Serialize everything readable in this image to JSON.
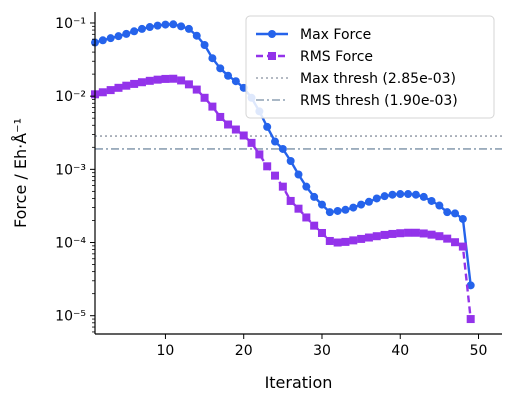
{
  "chart_data": {
    "type": "line",
    "xlabel": "Iteration",
    "ylabel": "Force / Eh·Å⁻¹",
    "xlim": [
      1,
      53
    ],
    "ylim_log10": [
      -5.25,
      -0.85
    ],
    "y_scale": "log",
    "grid": false,
    "legend_placement": "top-right",
    "x_ticks": [
      10,
      20,
      30,
      40,
      50
    ],
    "x_tick_labels": [
      "10",
      "20",
      "30",
      "40",
      "50"
    ],
    "y_ticks": [
      -5,
      -4,
      -3,
      -2,
      -1
    ],
    "y_tick_labels": [
      "10⁻⁵",
      "10⁻⁴",
      "10⁻³",
      "10⁻²",
      "10⁻¹"
    ],
    "x": [
      1,
      2,
      3,
      4,
      5,
      6,
      7,
      8,
      9,
      10,
      11,
      12,
      13,
      14,
      15,
      16,
      17,
      18,
      19,
      20,
      21,
      22,
      23,
      24,
      25,
      26,
      27,
      28,
      29,
      30,
      31,
      32,
      33,
      34,
      35,
      36,
      37,
      38,
      39,
      40,
      41,
      42,
      43,
      44,
      45,
      46,
      47,
      48,
      49
    ],
    "series": [
      {
        "name": "Max Force",
        "color": "#2563eb",
        "marker": "circle",
        "line": "solid",
        "values": [
          0.054,
          0.058,
          0.062,
          0.066,
          0.071,
          0.077,
          0.083,
          0.088,
          0.092,
          0.095,
          0.096,
          0.09,
          0.083,
          0.067,
          0.05,
          0.033,
          0.024,
          0.019,
          0.016,
          0.013,
          0.0095,
          0.0062,
          0.0038,
          0.0024,
          0.0019,
          0.0013,
          0.00085,
          0.00058,
          0.00042,
          0.00033,
          0.00026,
          0.00027,
          0.00028,
          0.0003,
          0.00033,
          0.00036,
          0.0004,
          0.00043,
          0.00045,
          0.00046,
          0.00046,
          0.00045,
          0.00042,
          0.00037,
          0.00032,
          0.00026,
          0.00025,
          0.00021,
          2.6e-05
        ]
      },
      {
        "name": "RMS Force",
        "color": "#9333ea",
        "marker": "square",
        "line": "dashed",
        "values": [
          0.0106,
          0.0113,
          0.0121,
          0.013,
          0.0139,
          0.0147,
          0.0155,
          0.0162,
          0.0168,
          0.0172,
          0.0173,
          0.0164,
          0.0145,
          0.0123,
          0.0095,
          0.0072,
          0.0052,
          0.0041,
          0.0035,
          0.0029,
          0.0023,
          0.0016,
          0.0011,
          0.00082,
          0.00058,
          0.00037,
          0.00029,
          0.00022,
          0.00017,
          0.000135,
          0.000105,
          0.0001,
          0.000102,
          0.000107,
          0.000112,
          0.000117,
          0.000122,
          0.000127,
          0.000131,
          0.000134,
          0.000136,
          0.000136,
          0.000133,
          0.000128,
          0.000122,
          0.000113,
          0.000101,
          8.8e-05,
          9e-06
        ]
      }
    ],
    "thresholds": [
      {
        "name": "Max thresh (2.85e-03)",
        "value": 0.00285,
        "color": "#9ca3af",
        "style": "dotted"
      },
      {
        "name": "RMS thresh (1.90e-03)",
        "value": 0.0019,
        "color": "#8da0b3",
        "style": "dashdot"
      }
    ]
  }
}
